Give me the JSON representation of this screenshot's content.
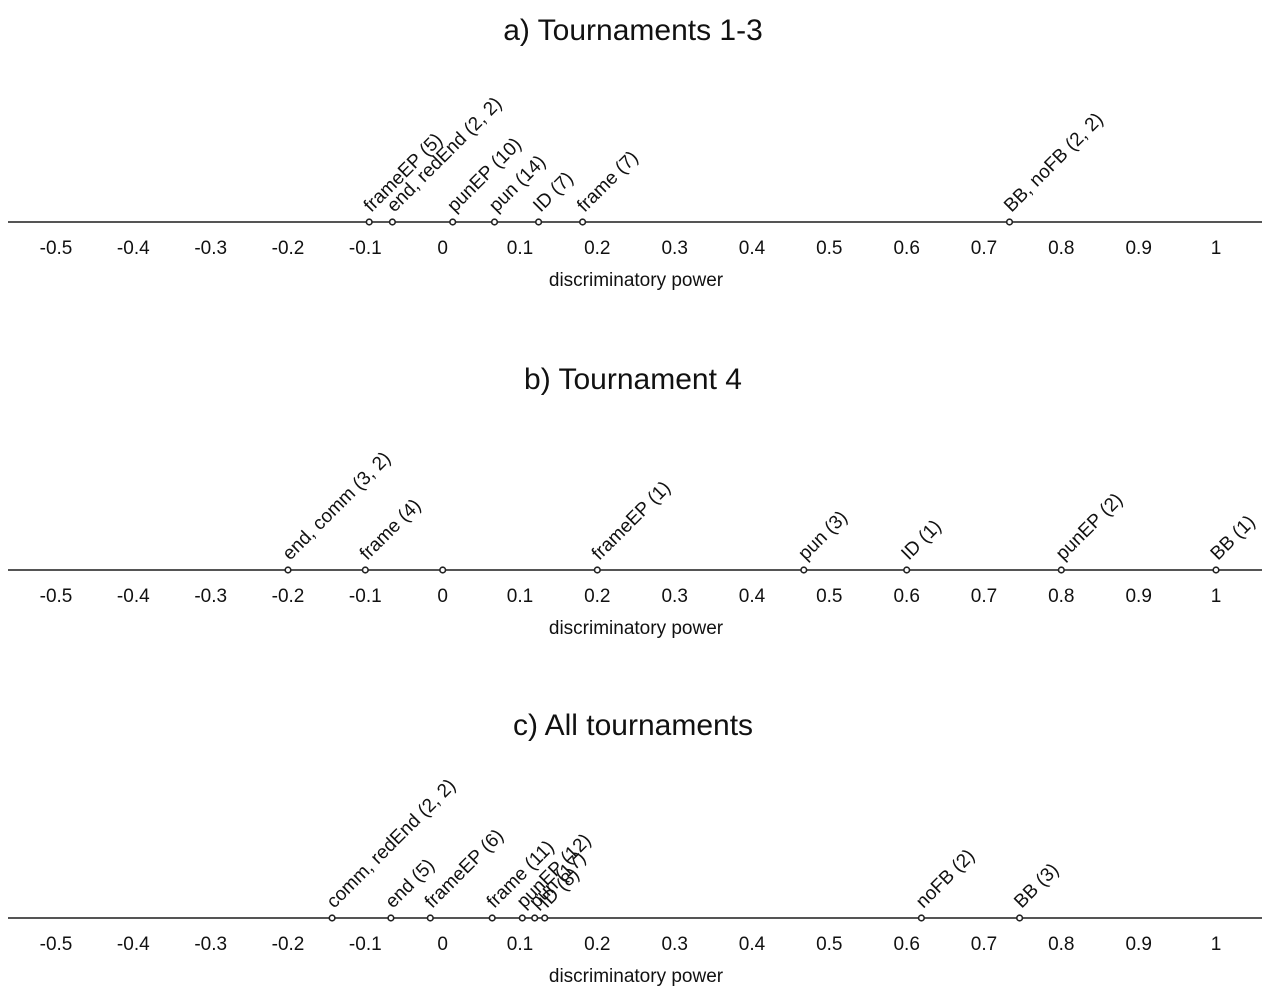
{
  "chart_data": [
    {
      "type": "scatter",
      "title": "a) Tournaments 1-3",
      "xlabel": "discriminatory power",
      "ylabel": "",
      "xlim": [
        -0.5,
        1.0
      ],
      "xticks": [
        "-0.5",
        "-0.4",
        "-0.3",
        "-0.2",
        "-0.1",
        "0",
        "0.1",
        "0.2",
        "0.3",
        "0.4",
        "0.5",
        "0.6",
        "0.7",
        "0.8",
        "0.9",
        "1"
      ],
      "grid": false,
      "points": [
        {
          "label": "frameEP (5)",
          "x": -0.095
        },
        {
          "label": "end, redEnd (2, 2)",
          "x": -0.065
        },
        {
          "label": "punEP (10)",
          "x": 0.013
        },
        {
          "label": "pun (14)",
          "x": 0.067
        },
        {
          "label": "ID (7)",
          "x": 0.124
        },
        {
          "label": "frame (7)",
          "x": 0.181
        },
        {
          "label": "BB, noFB (2, 2)",
          "x": 0.733
        }
      ]
    },
    {
      "type": "scatter",
      "title": "b) Tournament 4",
      "xlabel": "discriminatory power",
      "ylabel": "",
      "xlim": [
        -0.5,
        1.0
      ],
      "xticks": [
        "-0.5",
        "-0.4",
        "-0.3",
        "-0.2",
        "-0.1",
        "0",
        "0.1",
        "0.2",
        "0.3",
        "0.4",
        "0.5",
        "0.6",
        "0.7",
        "0.8",
        "0.9",
        "1"
      ],
      "grid": false,
      "points": [
        {
          "label": "end, comm (3, 2)",
          "x": -0.2
        },
        {
          "label": "frame (4)",
          "x": -0.1
        },
        {
          "label": "",
          "x": 0.0
        },
        {
          "label": "frameEP (1)",
          "x": 0.2
        },
        {
          "label": "pun (3)",
          "x": 0.467
        },
        {
          "label": "ID (1)",
          "x": 0.6
        },
        {
          "label": "punEP (2)",
          "x": 0.8
        },
        {
          "label": "BB (1)",
          "x": 1.0
        }
      ]
    },
    {
      "type": "scatter",
      "title": "c) All tournaments",
      "xlabel": "discriminatory power",
      "ylabel": "",
      "xlim": [
        -0.5,
        1.0
      ],
      "xticks": [
        "-0.5",
        "-0.4",
        "-0.3",
        "-0.2",
        "-0.1",
        "0",
        "0.1",
        "0.2",
        "0.3",
        "0.4",
        "0.5",
        "0.6",
        "0.7",
        "0.8",
        "0.9",
        "1"
      ],
      "grid": false,
      "points": [
        {
          "label": "comm, redEnd (2, 2)",
          "x": -0.143
        },
        {
          "label": "end (5)",
          "x": -0.067
        },
        {
          "label": "frameEP (6)",
          "x": -0.016
        },
        {
          "label": "frame (11)",
          "x": 0.064
        },
        {
          "label": "punEP (12)",
          "x": 0.103
        },
        {
          "label": "pun (17)",
          "x": 0.119
        },
        {
          "label": "ID (8)",
          "x": 0.132
        },
        {
          "label": "noFB (2)",
          "x": 0.619
        },
        {
          "label": "BB (3)",
          "x": 0.746
        }
      ]
    }
  ]
}
